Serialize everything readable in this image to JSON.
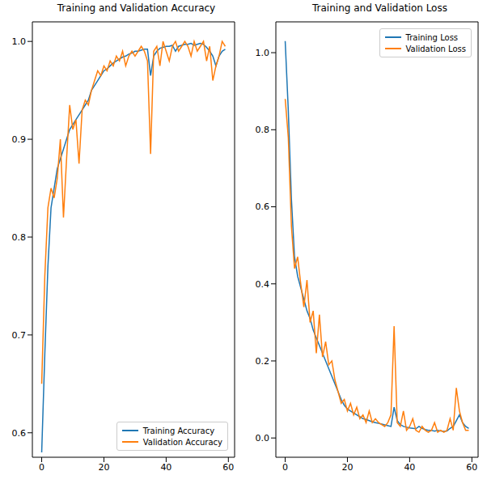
{
  "chart_data": [
    {
      "type": "line",
      "title": "Training and Validation Accuracy",
      "x": [
        0,
        1,
        2,
        3,
        4,
        5,
        6,
        7,
        8,
        9,
        10,
        11,
        12,
        13,
        14,
        15,
        16,
        17,
        18,
        19,
        20,
        21,
        22,
        23,
        24,
        25,
        26,
        27,
        28,
        29,
        30,
        31,
        32,
        33,
        34,
        35,
        36,
        37,
        38,
        39,
        40,
        41,
        42,
        43,
        44,
        45,
        46,
        47,
        48,
        49,
        50,
        51,
        52,
        53,
        54,
        55,
        56,
        57,
        58,
        59
      ],
      "series": [
        {
          "name": "Training Accuracy",
          "color": "#1f77b4",
          "values": [
            0.58,
            0.68,
            0.77,
            0.83,
            0.85,
            0.87,
            0.88,
            0.89,
            0.9,
            0.91,
            0.915,
            0.92,
            0.925,
            0.93,
            0.935,
            0.94,
            0.95,
            0.955,
            0.96,
            0.965,
            0.97,
            0.972,
            0.975,
            0.978,
            0.98,
            0.982,
            0.984,
            0.985,
            0.987,
            0.988,
            0.99,
            0.99,
            0.991,
            0.992,
            0.992,
            0.965,
            0.985,
            0.99,
            0.993,
            0.994,
            0.995,
            0.995,
            0.996,
            0.99,
            0.995,
            0.996,
            0.997,
            0.997,
            0.998,
            0.996,
            0.997,
            0.998,
            0.997,
            0.994,
            0.99,
            0.985,
            0.975,
            0.985,
            0.99,
            0.992
          ]
        },
        {
          "name": "Validation Accuracy",
          "color": "#ff7f0e",
          "values": [
            0.65,
            0.76,
            0.83,
            0.85,
            0.84,
            0.86,
            0.9,
            0.82,
            0.88,
            0.935,
            0.91,
            0.92,
            0.875,
            0.93,
            0.94,
            0.935,
            0.95,
            0.96,
            0.97,
            0.965,
            0.975,
            0.97,
            0.98,
            0.975,
            0.985,
            0.98,
            0.99,
            0.975,
            0.985,
            0.99,
            0.985,
            0.99,
            0.995,
            0.99,
            0.98,
            0.885,
            0.99,
            0.995,
            0.975,
            1.0,
            0.99,
            0.98,
            0.995,
            1.0,
            0.99,
            0.995,
            1.0,
            0.995,
            0.985,
            1.0,
            0.99,
            0.995,
            1.0,
            0.98,
            0.995,
            0.96,
            0.975,
            0.985,
            1.0,
            0.995
          ]
        }
      ],
      "xlim": [
        -3,
        62
      ],
      "xticks": [
        0,
        20,
        40,
        60
      ],
      "ylim": [
        0.575,
        1.02
      ],
      "yticks": [
        0.6,
        0.7,
        0.8,
        0.9,
        {
          "value": 1,
          "label": "1.0"
        }
      ],
      "legend": "lower right",
      "grid": false
    },
    {
      "type": "line",
      "title": "Training and Validation Loss",
      "x": [
        0,
        1,
        2,
        3,
        4,
        5,
        6,
        7,
        8,
        9,
        10,
        11,
        12,
        13,
        14,
        15,
        16,
        17,
        18,
        19,
        20,
        21,
        22,
        23,
        24,
        25,
        26,
        27,
        28,
        29,
        30,
        31,
        32,
        33,
        34,
        35,
        36,
        37,
        38,
        39,
        40,
        41,
        42,
        43,
        44,
        45,
        46,
        47,
        48,
        49,
        50,
        51,
        52,
        53,
        54,
        55,
        56,
        57,
        58,
        59
      ],
      "series": [
        {
          "name": "Training Loss",
          "color": "#1f77b4",
          "values": [
            1.03,
            0.85,
            0.62,
            0.47,
            0.42,
            0.39,
            0.36,
            0.33,
            0.31,
            0.28,
            0.26,
            0.24,
            0.22,
            0.2,
            0.18,
            0.16,
            0.14,
            0.12,
            0.1,
            0.085,
            0.075,
            0.07,
            0.065,
            0.06,
            0.055,
            0.05,
            0.048,
            0.045,
            0.042,
            0.04,
            0.038,
            0.036,
            0.034,
            0.032,
            0.03,
            0.08,
            0.045,
            0.035,
            0.03,
            0.028,
            0.026,
            0.025,
            0.024,
            0.03,
            0.025,
            0.022,
            0.02,
            0.02,
            0.018,
            0.02,
            0.018,
            0.017,
            0.018,
            0.025,
            0.03,
            0.045,
            0.06,
            0.04,
            0.03,
            0.025
          ]
        },
        {
          "name": "Validation Loss",
          "color": "#ff7f0e",
          "values": [
            0.88,
            0.78,
            0.55,
            0.44,
            0.47,
            0.4,
            0.34,
            0.41,
            0.3,
            0.33,
            0.22,
            0.32,
            0.21,
            0.25,
            0.19,
            0.2,
            0.15,
            0.12,
            0.09,
            0.1,
            0.07,
            0.09,
            0.06,
            0.08,
            0.05,
            0.06,
            0.04,
            0.07,
            0.04,
            0.05,
            0.04,
            0.035,
            0.03,
            0.04,
            0.06,
            0.29,
            0.04,
            0.03,
            0.07,
            0.02,
            0.03,
            0.05,
            0.02,
            0.015,
            0.03,
            0.02,
            0.015,
            0.02,
            0.04,
            0.015,
            0.02,
            0.015,
            0.02,
            0.05,
            0.02,
            0.13,
            0.07,
            0.04,
            0.02,
            0.02
          ]
        }
      ],
      "xlim": [
        -3,
        62
      ],
      "xticks": [
        0,
        20,
        40,
        60
      ],
      "ylim": [
        -0.05,
        1.08
      ],
      "yticks": [
        {
          "value": 0,
          "label": "0.0"
        },
        0.2,
        0.4,
        0.6,
        0.8,
        {
          "value": 1,
          "label": "1.0"
        }
      ],
      "legend": "upper right",
      "grid": false
    }
  ]
}
